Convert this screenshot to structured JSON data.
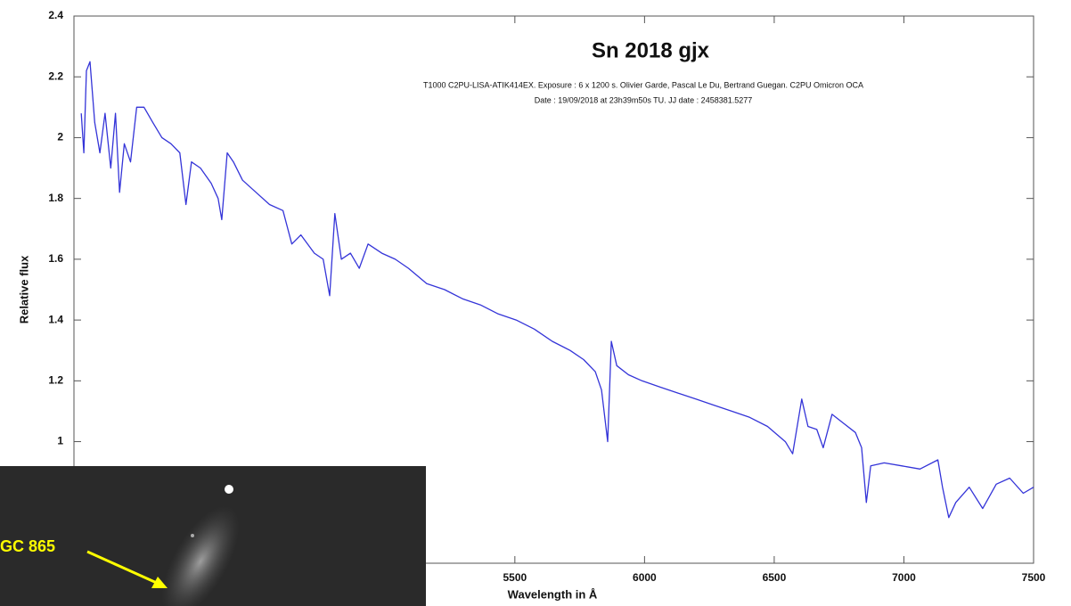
{
  "chart_data": {
    "type": "line",
    "title": "Sn 2018 gjx",
    "subtitle": [
      "T1000 C2PU-LISA-ATIK414EX. Exposure : 6 x 1200 s. Olivier Garde, Pascal Le Du, Bertrand Guegan. C2PU Omicron OCA",
      "Date : 19/09/2018 at 23h39m50s TU. JJ date : 2458381.5277"
    ],
    "x_label": "Wavelength in Å",
    "y_label": "Relative flux",
    "annotation": "GC 865",
    "xlim": [
      3800,
      7500
    ],
    "ylim": [
      0.6,
      2.4
    ],
    "xticks": [
      5500,
      6000,
      6500,
      7000,
      7500
    ],
    "yticks": [
      1,
      1.2,
      1.4,
      1.6,
      1.8,
      2,
      2.2,
      2.4
    ],
    "x": [
      3828,
      3838,
      3848,
      3862,
      3880,
      3900,
      3920,
      3942,
      3960,
      3976,
      3994,
      4018,
      4042,
      4070,
      4104,
      4139,
      4174,
      4208,
      4232,
      4253,
      4288,
      4329,
      4356,
      4370,
      4391,
      4415,
      4450,
      4502,
      4554,
      4606,
      4640,
      4675,
      4727,
      4761,
      4786,
      4806,
      4831,
      4866,
      4900,
      4934,
      4987,
      5039,
      5090,
      5160,
      5229,
      5298,
      5367,
      5436,
      5505,
      5575,
      5644,
      5713,
      5765,
      5810,
      5834,
      5858,
      5872,
      5893,
      5938,
      5990,
      6059,
      6128,
      6198,
      6267,
      6336,
      6405,
      6474,
      6543,
      6571,
      6606,
      6630,
      6664,
      6689,
      6723,
      6768,
      6813,
      6837,
      6855,
      6872,
      6924,
      6993,
      7062,
      7131,
      7149,
      7173,
      7200,
      7252,
      7304,
      7356,
      7408,
      7460,
      7500
    ],
    "series": [
      {
        "name": "Sn 2018 gjx",
        "color": "#3434d8",
        "values": [
          2.08,
          1.95,
          2.22,
          2.25,
          2.05,
          1.95,
          2.08,
          1.9,
          2.08,
          1.82,
          1.98,
          1.92,
          2.1,
          2.1,
          2.05,
          2.0,
          1.98,
          1.95,
          1.78,
          1.92,
          1.9,
          1.85,
          1.8,
          1.73,
          1.95,
          1.92,
          1.86,
          1.82,
          1.78,
          1.76,
          1.65,
          1.68,
          1.62,
          1.6,
          1.48,
          1.75,
          1.6,
          1.62,
          1.57,
          1.65,
          1.62,
          1.6,
          1.57,
          1.52,
          1.5,
          1.47,
          1.45,
          1.42,
          1.4,
          1.37,
          1.33,
          1.3,
          1.27,
          1.23,
          1.17,
          1.0,
          1.33,
          1.25,
          1.22,
          1.2,
          1.18,
          1.16,
          1.14,
          1.12,
          1.1,
          1.08,
          1.05,
          1.0,
          0.96,
          1.14,
          1.05,
          1.04,
          0.98,
          1.09,
          1.06,
          1.03,
          0.98,
          0.8,
          0.92,
          0.93,
          0.92,
          0.91,
          0.94,
          0.85,
          0.75,
          0.8,
          0.85,
          0.78,
          0.86,
          0.88,
          0.83,
          0.85
        ]
      }
    ]
  }
}
